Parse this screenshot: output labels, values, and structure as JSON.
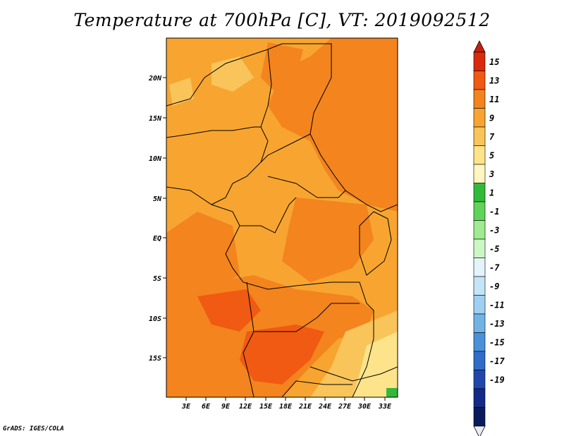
{
  "title": "Temperature at 700hPa [C], VT: 2019092512",
  "credit": "GrADS: IGES/COLA",
  "map": {
    "lat_labels": [
      "20N",
      "15N",
      "10N",
      "5N",
      "EQ",
      "5S",
      "10S",
      "15S"
    ],
    "lon_labels": [
      "3E",
      "6E",
      "9E",
      "12E",
      "15E",
      "18E",
      "21E",
      "24E",
      "27E",
      "30E",
      "33E"
    ]
  },
  "colorbar": {
    "labels": [
      "15",
      "13",
      "11",
      "9",
      "7",
      "5",
      "3",
      "1",
      "-1",
      "-3",
      "-5",
      "-7",
      "-9",
      "-11",
      "-13",
      "-15",
      "-17",
      "-19"
    ],
    "colors": [
      "#d92b0c",
      "#f05a12",
      "#f3841e",
      "#f7a530",
      "#f9c45a",
      "#fde48a",
      "#fff6c0",
      "#33b93a",
      "#5fd35a",
      "#9eeb90",
      "#cdf6c6",
      "#e3f4fb",
      "#c4e5f7",
      "#9fd0f1",
      "#72b3e6",
      "#4a91da",
      "#2f6dc8",
      "#2147ad",
      "#132b86",
      "#0a1a5a"
    ],
    "top_arrow_color": "#c81e0a",
    "bottom_arrow_color": "#e8ecf8"
  }
}
